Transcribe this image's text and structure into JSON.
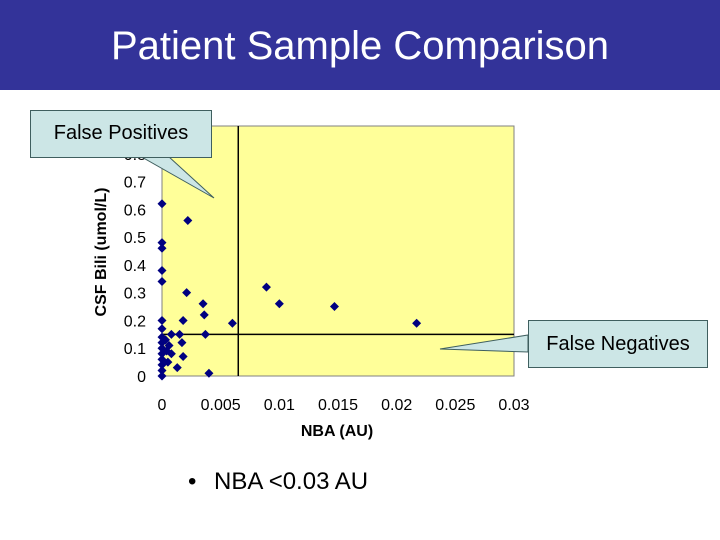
{
  "slide": {
    "title": "Patient Sample Comparison",
    "bullet": "NBA <0.03 AU",
    "bullet_marker": "•",
    "colors": {
      "title_bar": "#333399",
      "title_text": "#ffffff",
      "plot_bg": "#ffff99",
      "marker": "#000080",
      "callout_bg": "#cce6e6"
    }
  },
  "callouts": {
    "false_positives": "False Positives",
    "false_negatives": "False Negatives"
  },
  "chart_data": {
    "type": "scatter",
    "xlabel": "NBA (AU)",
    "ylabel": "CSF Bili (umol/L)",
    "xlim": [
      0,
      0.03
    ],
    "ylim": [
      0,
      0.9
    ],
    "xticks": [
      0,
      0.005,
      0.01,
      0.015,
      0.02,
      0.025,
      0.03
    ],
    "xtick_labels": [
      "0",
      "0.005",
      "0.01",
      "0.015",
      "0.02",
      "0.025",
      "0.03"
    ],
    "yticks": [
      0,
      0.1,
      0.2,
      0.3,
      0.4,
      0.5,
      0.6,
      0.7,
      0.8
    ],
    "ytick_labels": [
      "0",
      "0.1",
      "0.2",
      "0.3",
      "0.4",
      "0.5",
      "0.6",
      "0.7",
      "0.8"
    ],
    "cutoff_x": 0.0065,
    "cutoff_y": 0.15,
    "grid": false,
    "points": [
      {
        "x": 0.0,
        "y": 0.62
      },
      {
        "x": 0.0,
        "y": 0.48
      },
      {
        "x": 0.0,
        "y": 0.46
      },
      {
        "x": 0.0,
        "y": 0.38
      },
      {
        "x": 0.0,
        "y": 0.34
      },
      {
        "x": 0.0,
        "y": 0.2
      },
      {
        "x": 0.0,
        "y": 0.17
      },
      {
        "x": 0.0,
        "y": 0.14
      },
      {
        "x": 0.0,
        "y": 0.12
      },
      {
        "x": 0.0,
        "y": 0.1
      },
      {
        "x": 0.0,
        "y": 0.08
      },
      {
        "x": 0.0,
        "y": 0.06
      },
      {
        "x": 0.0,
        "y": 0.04
      },
      {
        "x": 0.0,
        "y": 0.02
      },
      {
        "x": 0.0,
        "y": 0.0
      },
      {
        "x": 0.0003,
        "y": 0.13
      },
      {
        "x": 0.0004,
        "y": 0.09
      },
      {
        "x": 0.0005,
        "y": 0.05
      },
      {
        "x": 0.0006,
        "y": 0.11
      },
      {
        "x": 0.0008,
        "y": 0.15
      },
      {
        "x": 0.0008,
        "y": 0.08
      },
      {
        "x": 0.0013,
        "y": 0.03
      },
      {
        "x": 0.0015,
        "y": 0.15
      },
      {
        "x": 0.0017,
        "y": 0.12
      },
      {
        "x": 0.0018,
        "y": 0.07
      },
      {
        "x": 0.0018,
        "y": 0.2
      },
      {
        "x": 0.0021,
        "y": 0.3
      },
      {
        "x": 0.0022,
        "y": 0.56
      },
      {
        "x": 0.0035,
        "y": 0.26
      },
      {
        "x": 0.0036,
        "y": 0.22
      },
      {
        "x": 0.0037,
        "y": 0.15
      },
      {
        "x": 0.004,
        "y": 0.01
      },
      {
        "x": 0.006,
        "y": 0.19
      },
      {
        "x": 0.0089,
        "y": 0.32
      },
      {
        "x": 0.01,
        "y": 0.26
      },
      {
        "x": 0.0147,
        "y": 0.25
      },
      {
        "x": 0.0217,
        "y": 0.19
      }
    ]
  }
}
